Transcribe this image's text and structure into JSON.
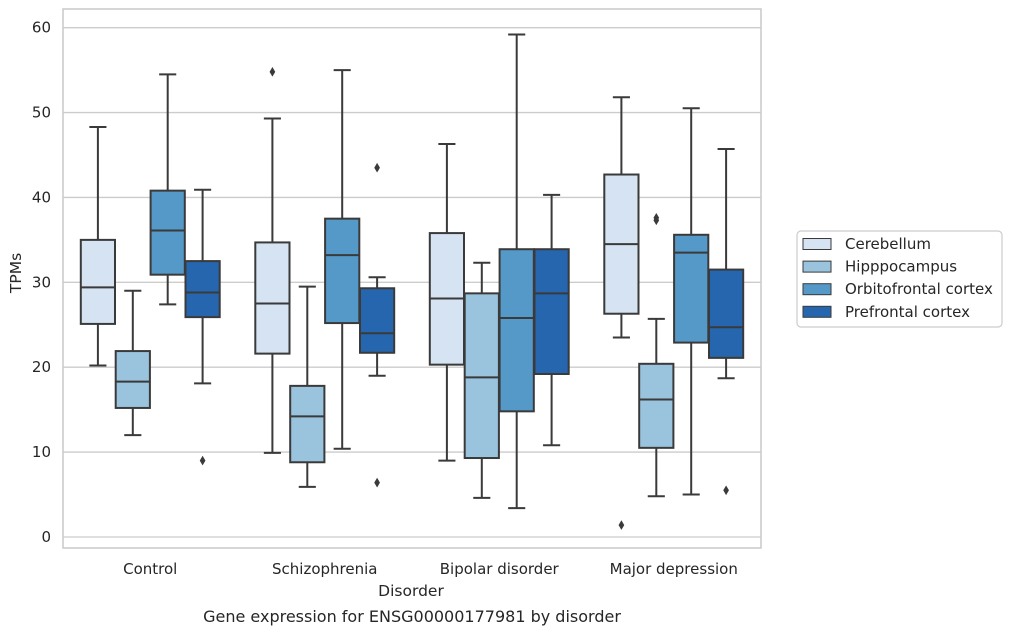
{
  "chart_data": {
    "type": "box",
    "caption": "Gene expression for ENSG00000177981 by disorder",
    "xlabel": "Disorder",
    "ylabel": "TPMs",
    "ylim": [
      -1.3,
      62.2
    ],
    "yticks": [
      0,
      10,
      20,
      30,
      40,
      50,
      60
    ],
    "grid": true,
    "legend_position": "right",
    "categories": [
      "Control",
      "Schizophrenia",
      "Bipolar disorder",
      "Major depression"
    ],
    "series": [
      {
        "name": "Cerebellum",
        "color": "#d5e3f2",
        "boxes": [
          {
            "whislo": 20.2,
            "q1": 25.1,
            "med": 29.4,
            "q3": 35.0,
            "whishi": 48.3,
            "fliers": []
          },
          {
            "whislo": 9.9,
            "q1": 21.6,
            "med": 27.5,
            "q3": 34.7,
            "whishi": 49.3,
            "fliers": [
              54.8
            ]
          },
          {
            "whislo": 9.0,
            "q1": 20.3,
            "med": 28.1,
            "q3": 35.8,
            "whishi": 46.3,
            "fliers": []
          },
          {
            "whislo": 23.5,
            "q1": 26.3,
            "med": 34.5,
            "q3": 42.7,
            "whishi": 51.8,
            "fliers": [
              1.4
            ]
          }
        ]
      },
      {
        "name": "Hipppocampus",
        "color": "#9ac4de",
        "boxes": [
          {
            "whislo": 12.0,
            "q1": 15.2,
            "med": 18.3,
            "q3": 21.9,
            "whishi": 29.0,
            "fliers": []
          },
          {
            "whislo": 5.9,
            "q1": 8.8,
            "med": 14.2,
            "q3": 17.8,
            "whishi": 29.5,
            "fliers": []
          },
          {
            "whislo": 4.6,
            "q1": 9.3,
            "med": 18.8,
            "q3": 28.7,
            "whishi": 32.3,
            "fliers": []
          },
          {
            "whislo": 4.8,
            "q1": 10.5,
            "med": 16.2,
            "q3": 20.4,
            "whishi": 25.7,
            "fliers": [
              37.3,
              37.6
            ]
          }
        ]
      },
      {
        "name": "Orbitofrontal cortex",
        "color": "#5599c8",
        "boxes": [
          {
            "whislo": 27.4,
            "q1": 30.9,
            "med": 36.1,
            "q3": 40.8,
            "whishi": 54.5,
            "fliers": []
          },
          {
            "whislo": 10.4,
            "q1": 25.2,
            "med": 33.2,
            "q3": 37.5,
            "whishi": 55.0,
            "fliers": []
          },
          {
            "whislo": 3.4,
            "q1": 14.8,
            "med": 25.8,
            "q3": 33.9,
            "whishi": 59.2,
            "fliers": []
          },
          {
            "whislo": 5.0,
            "q1": 22.9,
            "med": 33.5,
            "q3": 35.6,
            "whishi": 50.5,
            "fliers": []
          }
        ]
      },
      {
        "name": "Prefrontal cortex",
        "color": "#2566ae",
        "boxes": [
          {
            "whislo": 18.1,
            "q1": 25.9,
            "med": 28.8,
            "q3": 32.5,
            "whishi": 40.9,
            "fliers": [
              9.0
            ]
          },
          {
            "whislo": 19.0,
            "q1": 21.7,
            "med": 24.0,
            "q3": 29.3,
            "whishi": 30.6,
            "fliers": [
              43.5,
              6.4
            ]
          },
          {
            "whislo": 10.8,
            "q1": 19.2,
            "med": 28.7,
            "q3": 33.9,
            "whishi": 40.3,
            "fliers": []
          },
          {
            "whislo": 18.7,
            "q1": 21.1,
            "med": 24.7,
            "q3": 31.5,
            "whishi": 45.7,
            "fliers": [
              5.5
            ]
          }
        ]
      }
    ]
  }
}
